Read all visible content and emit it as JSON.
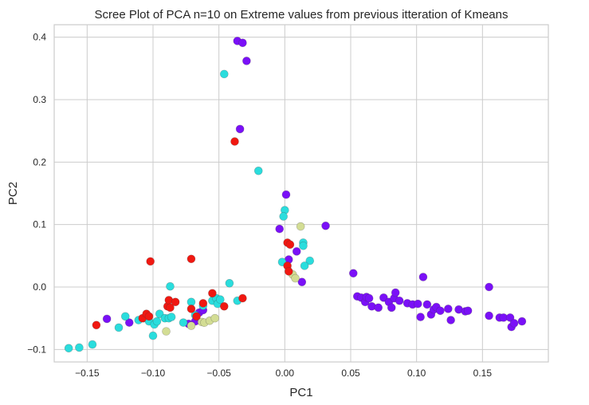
{
  "chart_data": {
    "type": "scatter",
    "title": "Scree Plot of PCA n=10 on Extreme values from previous itteration of Kmeans",
    "xlabel": "PC1",
    "ylabel": "PC2",
    "xlim": [
      -0.175,
      0.2
    ],
    "ylim": [
      -0.12,
      0.42
    ],
    "xticks": [
      -0.15,
      -0.1,
      -0.05,
      0.0,
      0.05,
      0.1,
      0.15
    ],
    "xtick_labels": [
      "−0.15",
      "−0.10",
      "−0.05",
      "0.00",
      "0.05",
      "0.10",
      "0.15"
    ],
    "yticks": [
      -0.1,
      0.0,
      0.1,
      0.2,
      0.3,
      0.4
    ],
    "ytick_labels": [
      "−0.1",
      "0.0",
      "0.1",
      "0.2",
      "0.3",
      "0.4"
    ],
    "grid": true,
    "legend": false,
    "series": [
      {
        "color": "#7a10f7",
        "points": [
          [
            -0.036,
            0.394
          ],
          [
            -0.032,
            0.391
          ],
          [
            -0.029,
            0.362
          ],
          [
            -0.034,
            0.253
          ],
          [
            0.001,
            0.148
          ],
          [
            -0.004,
            0.093
          ],
          [
            0.031,
            0.098
          ],
          [
            0.009,
            0.057
          ],
          [
            0.003,
            0.044
          ],
          [
            0.013,
            0.008
          ],
          [
            -0.135,
            -0.051
          ],
          [
            -0.118,
            -0.057
          ],
          [
            -0.073,
            -0.059
          ],
          [
            -0.068,
            -0.055
          ],
          [
            -0.065,
            -0.041
          ],
          [
            -0.062,
            -0.037
          ],
          [
            0.052,
            0.022
          ],
          [
            0.055,
            -0.015
          ],
          [
            0.058,
            -0.017
          ],
          [
            0.061,
            -0.024
          ],
          [
            0.062,
            -0.016
          ],
          [
            0.064,
            -0.018
          ],
          [
            0.066,
            -0.031
          ],
          [
            0.071,
            -0.033
          ],
          [
            0.075,
            -0.017
          ],
          [
            0.079,
            -0.024
          ],
          [
            0.081,
            -0.033
          ],
          [
            0.083,
            -0.018
          ],
          [
            0.084,
            -0.009
          ],
          [
            0.087,
            -0.022
          ],
          [
            0.093,
            -0.026
          ],
          [
            0.097,
            -0.028
          ],
          [
            0.101,
            -0.027
          ],
          [
            0.103,
            -0.048
          ],
          [
            0.105,
            0.016
          ],
          [
            0.108,
            -0.028
          ],
          [
            0.111,
            -0.044
          ],
          [
            0.113,
            -0.036
          ],
          [
            0.115,
            -0.032
          ],
          [
            0.118,
            -0.038
          ],
          [
            0.124,
            -0.035
          ],
          [
            0.126,
            -0.053
          ],
          [
            0.132,
            -0.036
          ],
          [
            0.137,
            -0.039
          ],
          [
            0.139,
            -0.038
          ],
          [
            0.155,
            0.0
          ],
          [
            0.155,
            -0.046
          ],
          [
            0.163,
            -0.049
          ],
          [
            0.166,
            -0.049
          ],
          [
            0.171,
            -0.049
          ],
          [
            0.172,
            -0.064
          ],
          [
            0.174,
            -0.058
          ],
          [
            0.18,
            -0.055
          ]
        ]
      },
      {
        "color": "#2adddd",
        "points": [
          [
            -0.046,
            0.341
          ],
          [
            -0.02,
            0.186
          ],
          [
            0.0,
            0.123
          ],
          [
            -0.001,
            0.113
          ],
          [
            0.014,
            0.071
          ],
          [
            0.014,
            0.066
          ],
          [
            0.019,
            0.042
          ],
          [
            0.015,
            0.034
          ],
          [
            -0.002,
            0.04
          ],
          [
            -0.164,
            -0.098
          ],
          [
            -0.156,
            -0.097
          ],
          [
            -0.146,
            -0.092
          ],
          [
            -0.126,
            -0.065
          ],
          [
            -0.121,
            -0.047
          ],
          [
            -0.111,
            -0.053
          ],
          [
            -0.107,
            -0.05
          ],
          [
            -0.103,
            -0.055
          ],
          [
            -0.1,
            -0.078
          ],
          [
            -0.099,
            -0.06
          ],
          [
            -0.097,
            -0.055
          ],
          [
            -0.095,
            -0.043
          ],
          [
            -0.091,
            -0.05
          ],
          [
            -0.087,
            0.001
          ],
          [
            -0.088,
            -0.05
          ],
          [
            -0.086,
            -0.048
          ],
          [
            -0.077,
            -0.057
          ],
          [
            -0.071,
            -0.024
          ],
          [
            -0.068,
            -0.045
          ],
          [
            -0.062,
            -0.03
          ],
          [
            -0.055,
            -0.022
          ],
          [
            -0.052,
            -0.018
          ],
          [
            -0.051,
            -0.027
          ],
          [
            -0.049,
            -0.02
          ],
          [
            -0.042,
            0.006
          ],
          [
            -0.036,
            -0.022
          ]
        ]
      },
      {
        "color": "#d3dd94",
        "points": [
          [
            0.012,
            0.097
          ],
          [
            0.006,
            0.02
          ],
          [
            0.008,
            0.014
          ],
          [
            -0.09,
            -0.071
          ],
          [
            -0.071,
            -0.062
          ],
          [
            -0.063,
            -0.056
          ],
          [
            -0.061,
            -0.057
          ],
          [
            -0.057,
            -0.054
          ],
          [
            -0.053,
            -0.05
          ]
        ]
      },
      {
        "color": "#f01811",
        "points": [
          [
            -0.038,
            0.233
          ],
          [
            0.002,
            0.071
          ],
          [
            0.004,
            0.068
          ],
          [
            0.002,
            0.034
          ],
          [
            0.003,
            0.025
          ],
          [
            -0.102,
            0.041
          ],
          [
            -0.071,
            0.045
          ],
          [
            -0.143,
            -0.061
          ],
          [
            -0.108,
            -0.05
          ],
          [
            -0.105,
            -0.043
          ],
          [
            -0.103,
            -0.047
          ],
          [
            -0.089,
            -0.031
          ],
          [
            -0.088,
            -0.021
          ],
          [
            -0.087,
            -0.033
          ],
          [
            -0.083,
            -0.024
          ],
          [
            -0.071,
            -0.035
          ],
          [
            -0.067,
            -0.047
          ],
          [
            -0.062,
            -0.026
          ],
          [
            -0.055,
            -0.01
          ],
          [
            -0.046,
            -0.031
          ],
          [
            -0.032,
            -0.018
          ]
        ]
      }
    ]
  }
}
